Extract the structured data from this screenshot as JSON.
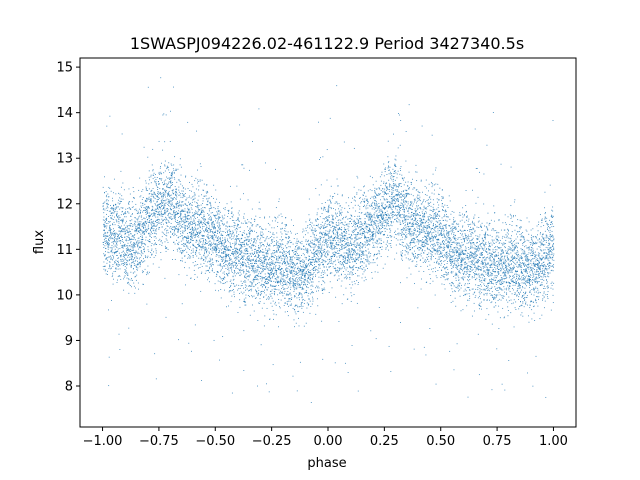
{
  "chart_data": {
    "type": "scatter",
    "title": "1SWASPJ094226.02-461122.9 Period 3427340.5s",
    "xlabel": "phase",
    "ylabel": "flux",
    "xlim": [
      -1.1,
      1.1
    ],
    "ylim": [
      7.1,
      15.2
    ],
    "x_ticks": [
      -1.0,
      -0.75,
      -0.5,
      -0.25,
      0.0,
      0.25,
      0.5,
      0.75,
      1.0
    ],
    "x_tick_labels": [
      "−1.00",
      "−0.75",
      "−0.50",
      "−0.25",
      "0.00",
      "0.25",
      "0.50",
      "0.75",
      "1.00"
    ],
    "y_ticks": [
      8,
      9,
      10,
      11,
      12,
      13,
      14,
      15
    ],
    "y_tick_labels": [
      "8",
      "9",
      "10",
      "11",
      "12",
      "13",
      "14",
      "15"
    ],
    "grid": false,
    "point_color": "#1f77b4",
    "series": [
      {
        "phase_range": [
          -1.0,
          1.0
        ],
        "points_per_bin": 50,
        "band_center": [
          [
            -1.0,
            11.4
          ],
          [
            -0.95,
            11.3
          ],
          [
            -0.9,
            11.1
          ],
          [
            -0.85,
            11.2
          ],
          [
            -0.8,
            11.7
          ],
          [
            -0.75,
            11.9
          ],
          [
            -0.7,
            12.1
          ],
          [
            -0.65,
            11.6
          ],
          [
            -0.6,
            11.5
          ],
          [
            -0.55,
            11.4
          ],
          [
            -0.5,
            11.3
          ],
          [
            -0.45,
            11.0
          ],
          [
            -0.4,
            10.9
          ],
          [
            -0.35,
            10.8
          ],
          [
            -0.3,
            10.7
          ],
          [
            -0.25,
            10.6
          ],
          [
            -0.2,
            10.7
          ],
          [
            -0.15,
            10.5
          ],
          [
            -0.1,
            10.6
          ],
          [
            -0.05,
            10.9
          ],
          [
            0.0,
            11.3
          ],
          [
            0.05,
            11.2
          ],
          [
            0.1,
            11.0
          ],
          [
            0.15,
            11.3
          ],
          [
            0.2,
            11.6
          ],
          [
            0.25,
            11.9
          ],
          [
            0.3,
            12.1
          ],
          [
            0.35,
            11.6
          ],
          [
            0.4,
            11.5
          ],
          [
            0.45,
            11.4
          ],
          [
            0.5,
            11.3
          ],
          [
            0.55,
            11.0
          ],
          [
            0.6,
            10.9
          ],
          [
            0.65,
            10.8
          ],
          [
            0.7,
            10.7
          ],
          [
            0.75,
            10.6
          ],
          [
            0.8,
            10.7
          ],
          [
            0.85,
            10.6
          ],
          [
            0.9,
            10.6
          ],
          [
            0.95,
            10.8
          ],
          [
            1.0,
            11.0
          ]
        ],
        "band_halfwidth": 0.7
      }
    ]
  }
}
